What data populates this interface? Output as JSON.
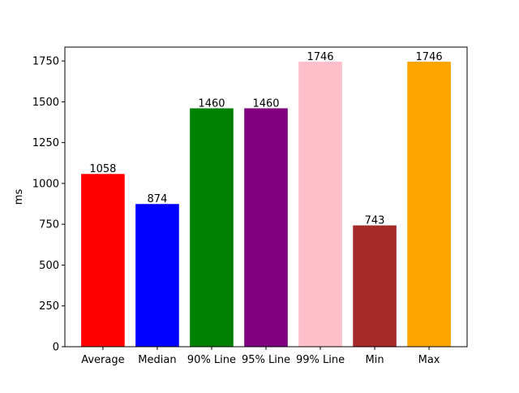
{
  "chart_data": {
    "type": "bar",
    "title": "",
    "xlabel": "",
    "ylabel": "ms",
    "categories": [
      "Average",
      "Median",
      "90% Line",
      "95% Line",
      "99% Line",
      "Min",
      "Max"
    ],
    "values": [
      1058,
      874,
      1460,
      1460,
      1746,
      743,
      1746
    ],
    "value_labels": [
      "1058",
      "874",
      "1460",
      "1460",
      "1746",
      "743",
      "1746"
    ],
    "colors": [
      "#ff0000",
      "#0000ff",
      "#008000",
      "#800080",
      "#ffc0cb",
      "#a52a2a",
      "#ffa500"
    ],
    "ylim": [
      0,
      1835
    ],
    "yticks": [
      0,
      250,
      500,
      750,
      1000,
      1250,
      1500,
      1750
    ],
    "ytick_labels": [
      "0",
      "250",
      "500",
      "750",
      "1000",
      "1250",
      "1500",
      "1750"
    ],
    "grid": false,
    "legend": "none"
  }
}
